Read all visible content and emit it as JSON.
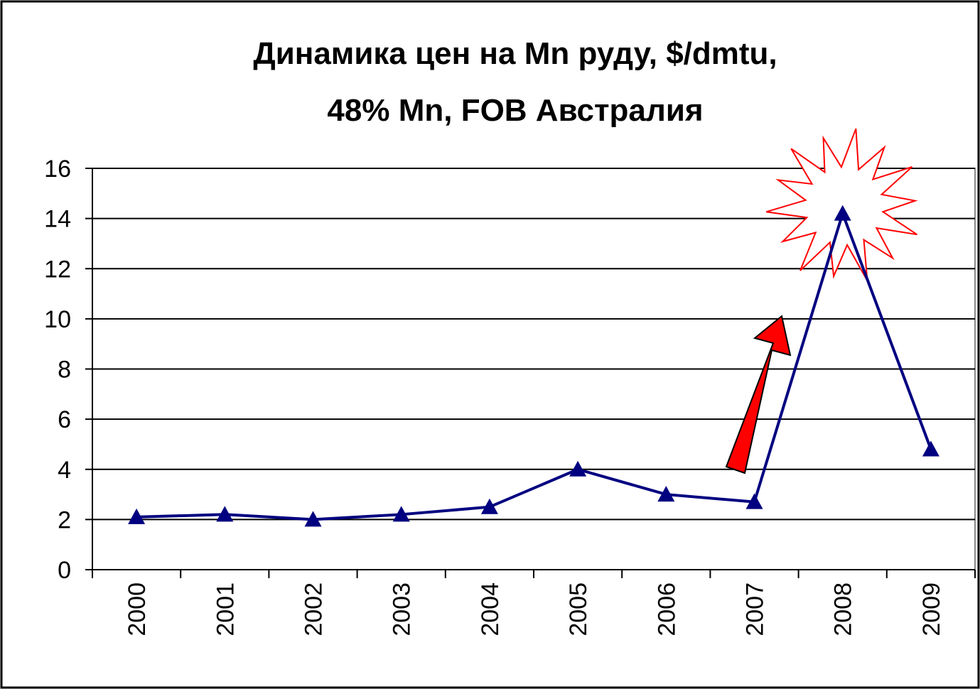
{
  "chart_data": {
    "type": "line",
    "title": [
      "Динамика цен на Mn руду, $/dmtu,",
      "48% Mn, FOB Австралия"
    ],
    "categories": [
      "2000",
      "2001",
      "2002",
      "2003",
      "2004",
      "2005",
      "2006",
      "2007",
      "2008",
      "2009"
    ],
    "series": [
      {
        "color": "#000080",
        "values": [
          2.1,
          2.2,
          2.0,
          2.2,
          2.5,
          4.0,
          3.0,
          2.7,
          14.2,
          4.8
        ]
      }
    ],
    "ylim": [
      0,
      16
    ],
    "yticks": [
      0,
      2,
      4,
      6,
      8,
      10,
      12,
      14,
      16
    ],
    "grid": true
  }
}
